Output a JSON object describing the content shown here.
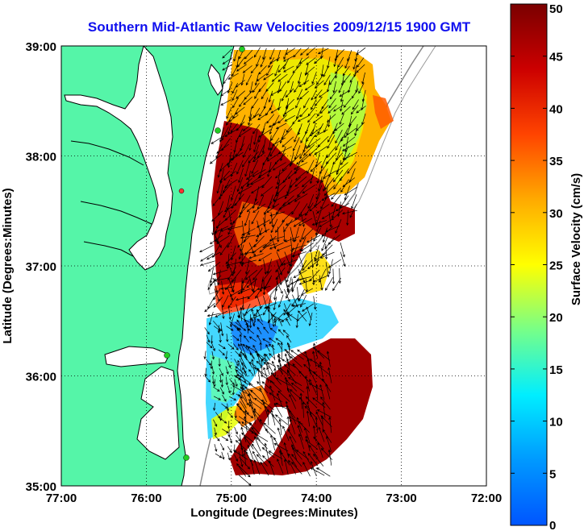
{
  "chart_data": {
    "type": "heatmap",
    "title": "Southern Mid-Atlantic Raw Velocities 2009/12/15 1900 GMT",
    "xlabel": "Longitude (Degrees:Minutes)",
    "ylabel": "Latitude (Degrees:Minutes)",
    "colorbar_label": "Surface Velocity (cm/s)",
    "x_ticks": [
      {
        "value": -77,
        "label": "77:00"
      },
      {
        "value": -76,
        "label": "76:00"
      },
      {
        "value": -75,
        "label": "75:00"
      },
      {
        "value": -74,
        "label": "74:00"
      },
      {
        "value": -73,
        "label": "73:00"
      },
      {
        "value": -72,
        "label": "72:00"
      }
    ],
    "y_ticks": [
      {
        "value": 39,
        "label": "39:00"
      },
      {
        "value": 38,
        "label": "38:00"
      },
      {
        "value": 37,
        "label": "37:00"
      },
      {
        "value": 36,
        "label": "36:00"
      },
      {
        "value": 35,
        "label": "35:00"
      }
    ],
    "xlim": [
      -77,
      -72
    ],
    "ylim": [
      35,
      39
    ],
    "grid": true,
    "colorbar": {
      "range": [
        0,
        50
      ],
      "ticks": [
        {
          "value": 50,
          "label": "50"
        },
        {
          "value": 45,
          "label": "45"
        },
        {
          "value": 40,
          "label": "40"
        },
        {
          "value": 35,
          "label": "35"
        },
        {
          "value": 30,
          "label": "30"
        },
        {
          "value": 25,
          "label": "25"
        },
        {
          "value": 20,
          "label": "20"
        },
        {
          "value": 15,
          "label": "15"
        },
        {
          "value": 10,
          "label": "10"
        },
        {
          "value": 5,
          "label": "5"
        },
        {
          "value": 0,
          "label": "0"
        }
      ],
      "colormap": "jet"
    },
    "velocity_regions": [
      {
        "lat": [
          38.3,
          39.0
        ],
        "lon": [
          -75.0,
          -73.4
        ],
        "speed_cm_s": 30
      },
      {
        "lat": [
          37.5,
          38.3
        ],
        "lon": [
          -75.1,
          -73.5
        ],
        "speed_cm_s": 45
      },
      {
        "lat": [
          36.9,
          37.5
        ],
        "lon": [
          -75.2,
          -73.7
        ],
        "speed_cm_s": 45
      },
      {
        "lat": [
          36.5,
          36.9
        ],
        "lon": [
          -75.2,
          -74.0
        ],
        "speed_cm_s": 38
      },
      {
        "lat": [
          36.0,
          36.5
        ],
        "lon": [
          -75.3,
          -74.3
        ],
        "speed_cm_s": 14
      },
      {
        "lat": [
          35.3,
          36.0
        ],
        "lon": [
          -75.2,
          -74.9
        ],
        "speed_cm_s": 12
      },
      {
        "lat": [
          35.1,
          36.2
        ],
        "lon": [
          -74.9,
          -73.8
        ],
        "speed_cm_s": 48
      }
    ],
    "colors": {
      "land": "#55f5a8",
      "coastline": "#000000",
      "bathymetry": "#888888",
      "station": "#22cc22",
      "station_alt": "#ff3333",
      "vector": "#000000"
    }
  }
}
